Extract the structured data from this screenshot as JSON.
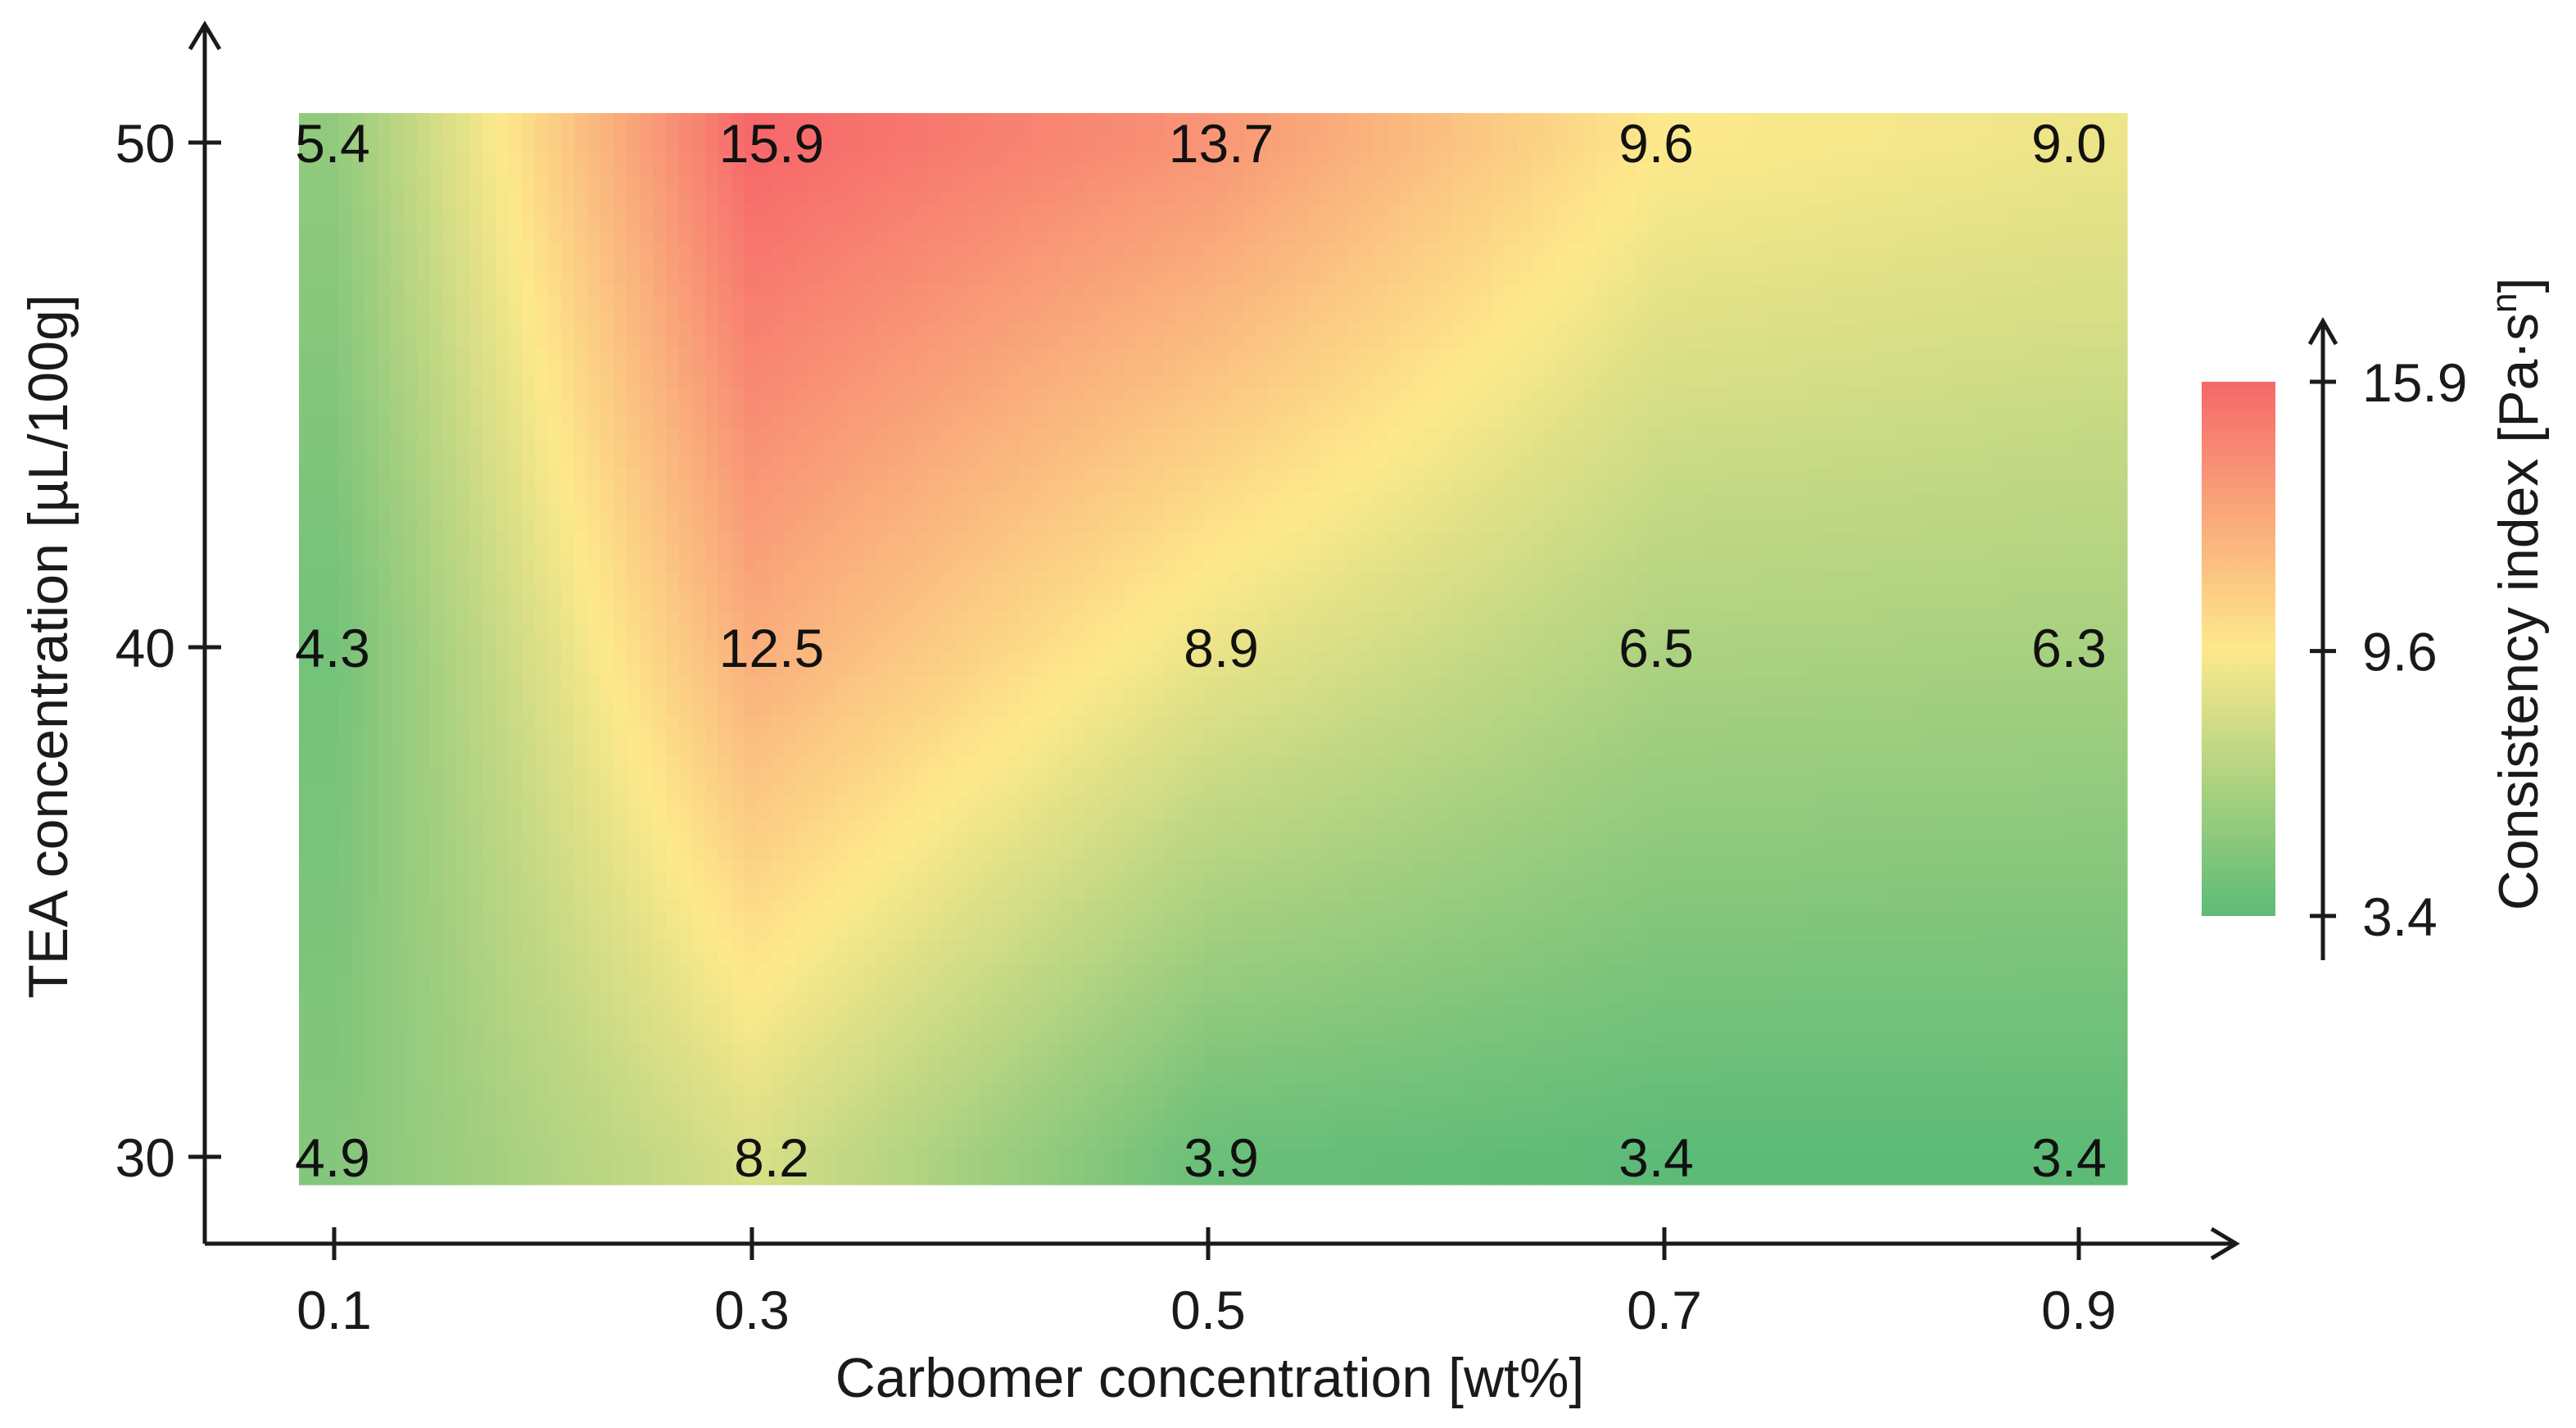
{
  "chart_data": {
    "type": "heatmap",
    "title": "",
    "xlabel": "Carbomer concentration [wt%]",
    "ylabel": "TEA concentration [µL/100g]",
    "x": [
      0.1,
      0.3,
      0.5,
      0.7,
      0.9
    ],
    "x_tick_labels": [
      "0.1",
      "0.3",
      "0.5",
      "0.7",
      "0.9"
    ],
    "y": [
      30,
      40,
      50
    ],
    "y_tick_labels": [
      "30",
      "40",
      "50"
    ],
    "values": [
      [
        4.9,
        8.2,
        3.9,
        3.4,
        3.4
      ],
      [
        4.3,
        12.5,
        8.9,
        6.5,
        6.3
      ],
      [
        5.4,
        15.9,
        13.7,
        9.6,
        9.0
      ]
    ],
    "value_labels": [
      [
        "4.9",
        "8.2",
        "3.9",
        "3.4",
        "3.4"
      ],
      [
        "4.3",
        "12.5",
        "8.9",
        "6.5",
        "6.3"
      ],
      [
        "5.4",
        "15.9",
        "13.7",
        "9.6",
        "9.0"
      ]
    ],
    "colorbar": {
      "label": "Consistency index [Pa·s",
      "label_superscript": "n",
      "label_close": "]",
      "min": 3.4,
      "mid": 9.6,
      "max": 15.9,
      "ticks": [
        3.4,
        9.6,
        15.9
      ],
      "tick_labels": [
        "3.4",
        "9.6",
        "15.9"
      ],
      "colors": {
        "low": "#5dbb77",
        "mid": "#fde98b",
        "high": "#f6676a"
      }
    },
    "legend": "right"
  }
}
